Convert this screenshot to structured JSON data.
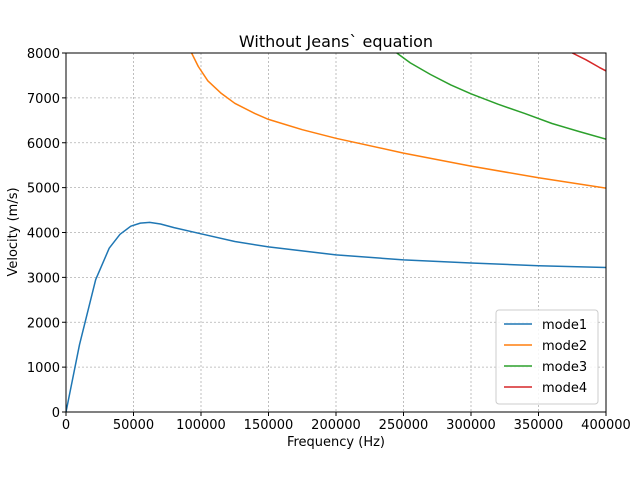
{
  "chart_data": {
    "type": "line",
    "title": "Without Jeans` equation",
    "xlabel": "Frequency (Hz)",
    "ylabel": "Velocity (m/s)",
    "xlim": [
      0,
      400000
    ],
    "ylim": [
      0,
      8000
    ],
    "xticks": [
      0,
      50000,
      100000,
      150000,
      200000,
      250000,
      300000,
      350000,
      400000
    ],
    "yticks": [
      0,
      1000,
      2000,
      3000,
      4000,
      5000,
      6000,
      7000,
      8000
    ],
    "grid": true,
    "legend_position": "lower-right",
    "series": [
      {
        "name": "mode1",
        "color": "#1f77b4",
        "x": [
          0,
          10000,
          22000,
          32000,
          40000,
          48000,
          55000,
          62000,
          70000,
          80000,
          100000,
          125000,
          150000,
          200000,
          250000,
          300000,
          350000,
          400000
        ],
        "y": [
          0,
          1500,
          2950,
          3650,
          3960,
          4140,
          4210,
          4225,
          4190,
          4110,
          3970,
          3800,
          3680,
          3500,
          3390,
          3320,
          3260,
          3220
        ]
      },
      {
        "name": "mode2",
        "color": "#ff7f0e",
        "x": [
          93000,
          98000,
          105000,
          115000,
          125000,
          140000,
          150000,
          175000,
          200000,
          250000,
          300000,
          350000,
          400000
        ],
        "y": [
          8000,
          7700,
          7380,
          7100,
          6880,
          6650,
          6520,
          6290,
          6100,
          5770,
          5480,
          5220,
          4990
        ],
        "segments": [
          {
            "x": 93000,
            "y": 8000
          }
        ]
      },
      {
        "name": "mode3",
        "color": "#2ca02c",
        "x": [
          245000,
          255000,
          270000,
          285000,
          300000,
          320000,
          340000,
          360000,
          380000,
          400000
        ],
        "y": [
          8000,
          7780,
          7520,
          7290,
          7090,
          6860,
          6650,
          6430,
          6250,
          6080
        ]
      },
      {
        "name": "mode4",
        "color": "#d62728",
        "x": [
          375000,
          385000,
          395000,
          400000
        ],
        "y": [
          8000,
          7850,
          7680,
          7600
        ]
      }
    ]
  }
}
